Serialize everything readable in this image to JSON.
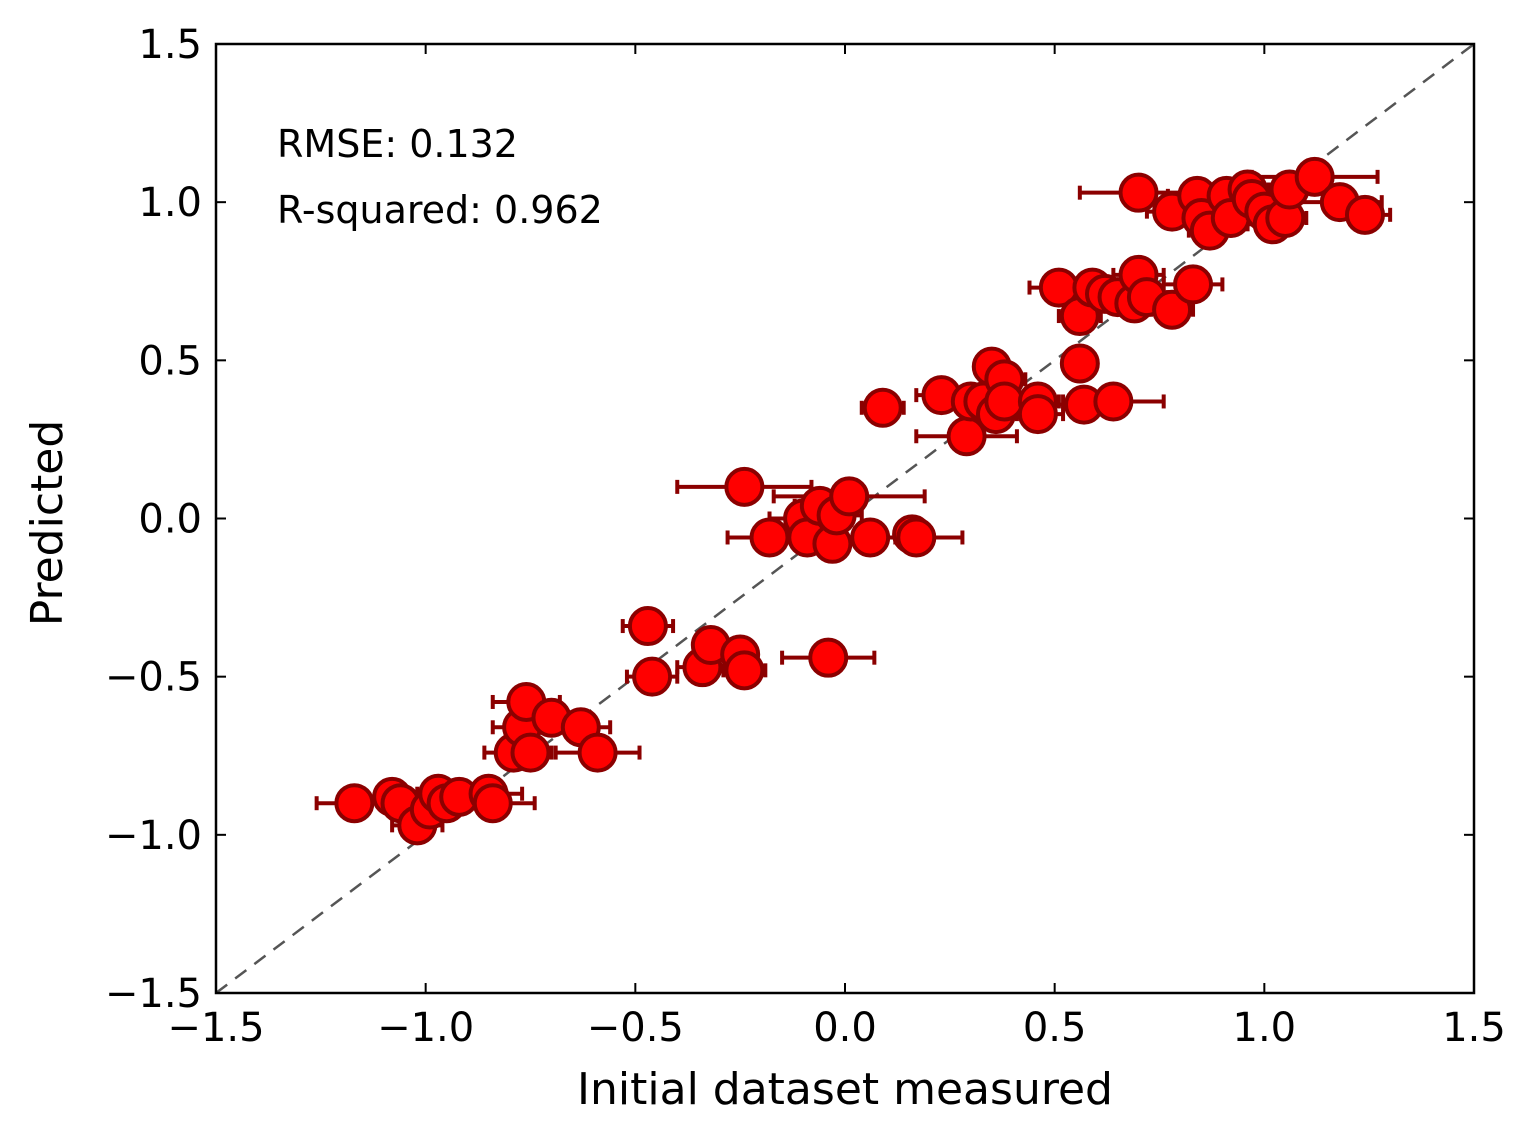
{
  "chart_data": {
    "type": "scatter",
    "xlabel": "Initial dataset measured",
    "ylabel": "Predicted",
    "xlim": [
      -1.5,
      1.5
    ],
    "ylim": [
      -1.5,
      1.5
    ],
    "xticks": [
      "−1.5",
      "−1.0",
      "−0.5",
      "0.0",
      "0.5",
      "1.0",
      "1.5"
    ],
    "yticks": [
      "−1.5",
      "−1.0",
      "−0.5",
      "0.0",
      "0.5",
      "1.0",
      "1.5"
    ],
    "xtick_values": [
      -1.5,
      -1.0,
      -0.5,
      0.0,
      0.5,
      1.0,
      1.5
    ],
    "ytick_values": [
      -1.5,
      -1.0,
      -0.5,
      0.0,
      0.5,
      1.0,
      1.5
    ],
    "annotations": [
      "RMSE: 0.132",
      "R-squared: 0.962"
    ],
    "reference_line": "y = x (dashed)",
    "grid": false,
    "colors": {
      "marker_fill": "#ff0000",
      "marker_edge": "#8b0000",
      "errorbar": "#8b0000",
      "reference_line": "#555555"
    },
    "points": [
      {
        "x": -1.17,
        "y": -0.9,
        "xerr": 0.09
      },
      {
        "x": -1.08,
        "y": -0.88,
        "xerr": 0.04
      },
      {
        "x": -1.06,
        "y": -0.9,
        "xerr": 0.05
      },
      {
        "x": -1.02,
        "y": -0.97,
        "xerr": 0.06
      },
      {
        "x": -0.99,
        "y": -0.92,
        "xerr": 0.05
      },
      {
        "x": -0.97,
        "y": -0.87,
        "xerr": 0.05
      },
      {
        "x": -0.95,
        "y": -0.9,
        "xerr": 0.05
      },
      {
        "x": -0.92,
        "y": -0.88,
        "xerr": 0.05
      },
      {
        "x": -0.85,
        "y": -0.87,
        "xerr": 0.08
      },
      {
        "x": -0.84,
        "y": -0.9,
        "xerr": 0.1
      },
      {
        "x": -0.79,
        "y": -0.74,
        "xerr": 0.07
      },
      {
        "x": -0.77,
        "y": -0.66,
        "xerr": 0.07
      },
      {
        "x": -0.76,
        "y": -0.58,
        "xerr": 0.08
      },
      {
        "x": -0.75,
        "y": -0.74,
        "xerr": 0.05
      },
      {
        "x": -0.7,
        "y": -0.63,
        "xerr": 0.04
      },
      {
        "x": -0.63,
        "y": -0.66,
        "xerr": 0.07
      },
      {
        "x": -0.59,
        "y": -0.74,
        "xerr": 0.1
      },
      {
        "x": -0.47,
        "y": -0.34,
        "xerr": 0.06
      },
      {
        "x": -0.46,
        "y": -0.5,
        "xerr": 0.06
      },
      {
        "x": -0.34,
        "y": -0.47,
        "xerr": 0.06
      },
      {
        "x": -0.32,
        "y": -0.4,
        "xerr": 0.04
      },
      {
        "x": -0.25,
        "y": -0.43,
        "xerr": 0.04
      },
      {
        "x": -0.24,
        "y": -0.48,
        "xerr": 0.05
      },
      {
        "x": -0.04,
        "y": -0.44,
        "xerr": 0.11
      },
      {
        "x": -0.24,
        "y": 0.1,
        "xerr": 0.16
      },
      {
        "x": -0.18,
        "y": -0.06,
        "xerr": 0.1
      },
      {
        "x": -0.1,
        "y": 0.0,
        "xerr": 0.08
      },
      {
        "x": -0.09,
        "y": -0.06,
        "xerr": 0.08
      },
      {
        "x": -0.06,
        "y": 0.04,
        "xerr": 0.06
      },
      {
        "x": -0.03,
        "y": -0.08,
        "xerr": 0.07
      },
      {
        "x": -0.02,
        "y": 0.01,
        "xerr": 0.06
      },
      {
        "x": 0.01,
        "y": 0.07,
        "xerr": 0.18
      },
      {
        "x": 0.06,
        "y": -0.06,
        "xerr": 0.06
      },
      {
        "x": 0.16,
        "y": -0.05,
        "xerr": 0.04
      },
      {
        "x": 0.17,
        "y": -0.06,
        "xerr": 0.11
      },
      {
        "x": 0.09,
        "y": 0.35,
        "xerr": 0.05
      },
      {
        "x": 0.23,
        "y": 0.39,
        "xerr": 0.06
      },
      {
        "x": 0.29,
        "y": 0.26,
        "xerr": 0.12
      },
      {
        "x": 0.3,
        "y": 0.37,
        "xerr": 0.06
      },
      {
        "x": 0.33,
        "y": 0.37,
        "xerr": 0.05
      },
      {
        "x": 0.35,
        "y": 0.48,
        "xerr": 0.04
      },
      {
        "x": 0.36,
        "y": 0.33,
        "xerr": 0.05
      },
      {
        "x": 0.38,
        "y": 0.44,
        "xerr": 0.05
      },
      {
        "x": 0.38,
        "y": 0.37,
        "xerr": 0.05
      },
      {
        "x": 0.46,
        "y": 0.37,
        "xerr": 0.05
      },
      {
        "x": 0.46,
        "y": 0.33,
        "xerr": 0.06
      },
      {
        "x": 0.56,
        "y": 0.49,
        "xerr": 0.03
      },
      {
        "x": 0.57,
        "y": 0.36,
        "xerr": 0.1
      },
      {
        "x": 0.64,
        "y": 0.37,
        "xerr": 0.12
      },
      {
        "x": 0.51,
        "y": 0.73,
        "xerr": 0.07
      },
      {
        "x": 0.56,
        "y": 0.64,
        "xerr": 0.05
      },
      {
        "x": 0.59,
        "y": 0.73,
        "xerr": 0.08
      },
      {
        "x": 0.62,
        "y": 0.71,
        "xerr": 0.06
      },
      {
        "x": 0.65,
        "y": 0.7,
        "xerr": 0.05
      },
      {
        "x": 0.69,
        "y": 0.68,
        "xerr": 0.05
      },
      {
        "x": 0.7,
        "y": 0.77,
        "xerr": 0.06
      },
      {
        "x": 0.72,
        "y": 0.7,
        "xerr": 0.05
      },
      {
        "x": 0.78,
        "y": 0.66,
        "xerr": 0.05
      },
      {
        "x": 0.83,
        "y": 0.74,
        "xerr": 0.07
      },
      {
        "x": 0.7,
        "y": 1.03,
        "xerr": 0.14
      },
      {
        "x": 0.78,
        "y": 0.97,
        "xerr": 0.06
      },
      {
        "x": 0.84,
        "y": 1.02,
        "xerr": 0.07
      },
      {
        "x": 0.85,
        "y": 0.95,
        "xerr": 0.07
      },
      {
        "x": 0.87,
        "y": 0.91,
        "xerr": 0.05
      },
      {
        "x": 0.91,
        "y": 1.02,
        "xerr": 0.05
      },
      {
        "x": 0.92,
        "y": 0.95,
        "xerr": 0.07
      },
      {
        "x": 0.96,
        "y": 1.04,
        "xerr": 0.05
      },
      {
        "x": 0.97,
        "y": 1.01,
        "xerr": 0.06
      },
      {
        "x": 1.0,
        "y": 0.97,
        "xerr": 0.05
      },
      {
        "x": 1.02,
        "y": 0.93,
        "xerr": 0.06
      },
      {
        "x": 1.05,
        "y": 0.95,
        "xerr": 0.05
      },
      {
        "x": 1.06,
        "y": 1.04,
        "xerr": 0.09
      },
      {
        "x": 1.12,
        "y": 1.08,
        "xerr": 0.15
      },
      {
        "x": 1.18,
        "y": 1.0,
        "xerr": 0.1
      },
      {
        "x": 1.24,
        "y": 0.96,
        "xerr": 0.06
      }
    ]
  }
}
